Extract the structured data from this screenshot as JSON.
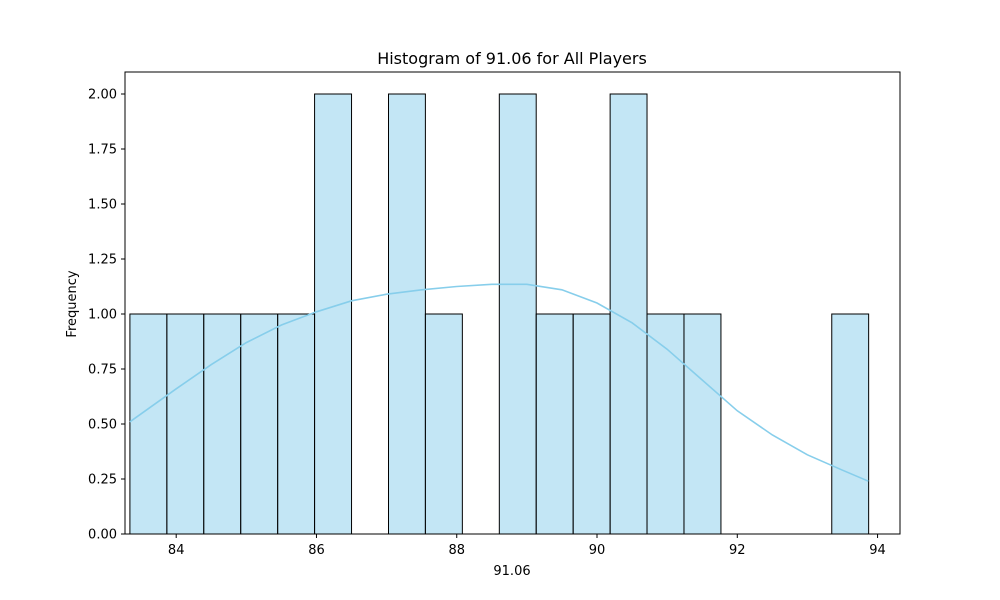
{
  "chart_data": {
    "type": "bar",
    "title": "Histogram of 91.06 for All Players",
    "xlabel": "91.06",
    "ylabel": "Frequency",
    "xlim": [
      83.27,
      94.32
    ],
    "ylim": [
      0,
      2.1
    ],
    "bin_edges": [
      83.34,
      83.867,
      84.393,
      84.92,
      85.447,
      85.973,
      86.5,
      87.027,
      87.553,
      88.08,
      88.607,
      89.133,
      89.66,
      90.187,
      90.713,
      91.24,
      91.767,
      92.293,
      92.82,
      93.347,
      93.873
    ],
    "counts": [
      1,
      1,
      1,
      1,
      1,
      2,
      0,
      2,
      1,
      0,
      2,
      1,
      1,
      2,
      1,
      1,
      0,
      0,
      0,
      1
    ],
    "kde": {
      "x": [
        83.34,
        84.0,
        84.5,
        85.0,
        85.5,
        86.0,
        86.5,
        87.0,
        87.5,
        88.0,
        88.5,
        89.0,
        89.5,
        90.0,
        90.5,
        91.0,
        91.5,
        92.0,
        92.5,
        93.0,
        93.5,
        93.87
      ],
      "y": [
        0.51,
        0.66,
        0.77,
        0.87,
        0.95,
        1.01,
        1.06,
        1.09,
        1.11,
        1.125,
        1.135,
        1.135,
        1.11,
        1.05,
        0.96,
        0.84,
        0.7,
        0.56,
        0.45,
        0.36,
        0.29,
        0.24
      ]
    },
    "xticks": [
      84,
      86,
      88,
      90,
      92,
      94
    ],
    "xtick_labels": [
      "84",
      "86",
      "88",
      "90",
      "92",
      "94"
    ],
    "yticks": [
      0,
      0.25,
      0.5,
      0.75,
      1.0,
      1.25,
      1.5,
      1.75,
      2.0
    ],
    "ytick_labels": [
      "0.00",
      "0.25",
      "0.50",
      "0.75",
      "1.00",
      "1.25",
      "1.50",
      "1.75",
      "2.00"
    ],
    "grid": false,
    "bar_color": "#87ceeb",
    "bar_opacity": 0.5,
    "bar_edge_color": "#000000",
    "kde_color": "#87ceeb"
  }
}
